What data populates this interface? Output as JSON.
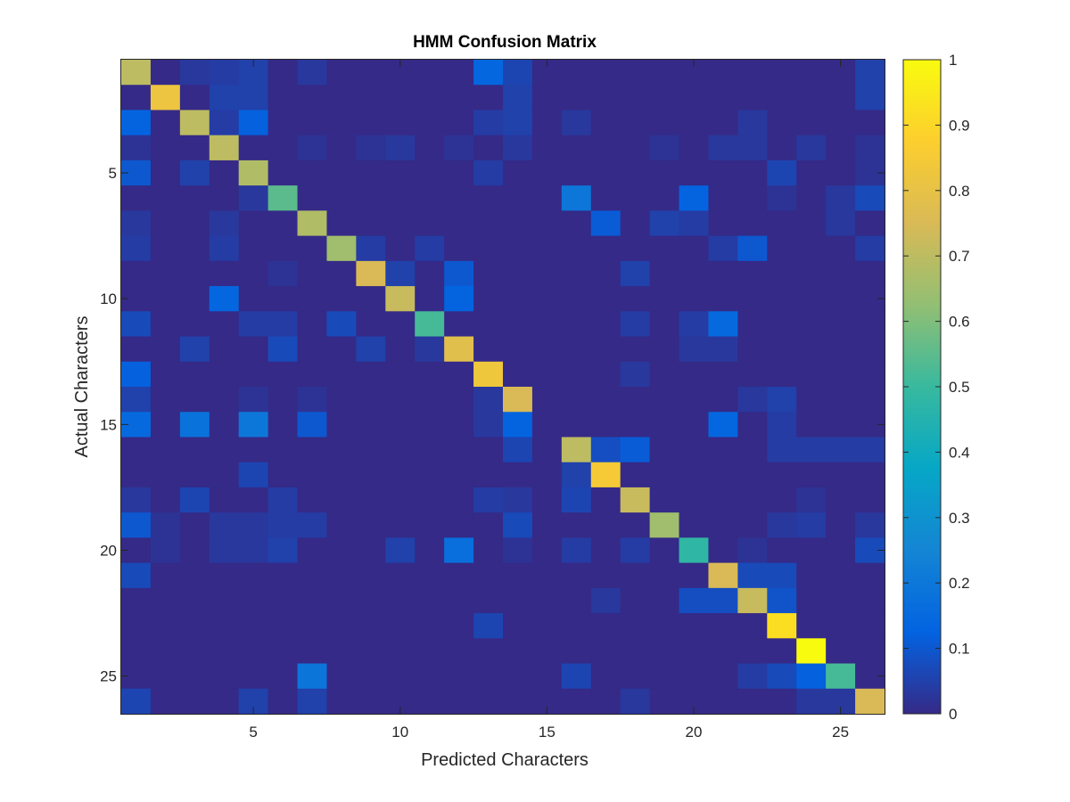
{
  "chart_data": {
    "type": "heatmap",
    "title": "HMM Confusion Matrix",
    "xlabel": "Predicted Characters",
    "ylabel": "Actual Characters",
    "rows": 26,
    "cols": 26,
    "xticks": [
      5,
      10,
      15,
      20,
      25
    ],
    "yticks": [
      5,
      10,
      15,
      20,
      25
    ],
    "clim": [
      0,
      1
    ],
    "colorbar_ticks": [
      0,
      0.1,
      0.2,
      0.3,
      0.4,
      0.5,
      0.6,
      0.7,
      0.8,
      0.9,
      1
    ],
    "colormap": "parula",
    "colormap_stops": [
      "#352a87",
      "#0363e1",
      "#1485d4",
      "#06a7c6",
      "#38b99e",
      "#92bf73",
      "#d9ba56",
      "#fcce2e",
      "#f9fb0e"
    ],
    "grid": false,
    "matrix": [
      [
        0.7,
        0.0,
        0.03,
        0.04,
        0.05,
        0.0,
        0.03,
        0.0,
        0.0,
        0.0,
        0.0,
        0.0,
        0.14,
        0.06,
        0.0,
        0.0,
        0.0,
        0.0,
        0.0,
        0.0,
        0.0,
        0.0,
        0.0,
        0.0,
        0.0,
        0.05
      ],
      [
        0.0,
        0.82,
        0.0,
        0.05,
        0.05,
        0.0,
        0.0,
        0.0,
        0.0,
        0.0,
        0.0,
        0.0,
        0.0,
        0.05,
        0.0,
        0.0,
        0.0,
        0.0,
        0.0,
        0.0,
        0.0,
        0.0,
        0.0,
        0.0,
        0.0,
        0.05
      ],
      [
        0.13,
        0.0,
        0.7,
        0.04,
        0.12,
        0.0,
        0.0,
        0.0,
        0.0,
        0.0,
        0.0,
        0.0,
        0.04,
        0.05,
        0.0,
        0.03,
        0.0,
        0.0,
        0.0,
        0.0,
        0.0,
        0.03,
        0.0,
        0.0,
        0.0,
        0.0
      ],
      [
        0.02,
        0.0,
        0.0,
        0.7,
        0.0,
        0.0,
        0.02,
        0.0,
        0.02,
        0.03,
        0.0,
        0.02,
        0.0,
        0.03,
        0.0,
        0.0,
        0.0,
        0.0,
        0.02,
        0.0,
        0.03,
        0.03,
        0.0,
        0.03,
        0.0,
        0.02
      ],
      [
        0.1,
        0.0,
        0.05,
        0.0,
        0.68,
        0.0,
        0.0,
        0.0,
        0.0,
        0.0,
        0.0,
        0.0,
        0.04,
        0.0,
        0.0,
        0.0,
        0.0,
        0.0,
        0.0,
        0.0,
        0.0,
        0.0,
        0.06,
        0.0,
        0.0,
        0.02
      ],
      [
        0.0,
        0.0,
        0.0,
        0.0,
        0.03,
        0.55,
        0.0,
        0.0,
        0.0,
        0.0,
        0.0,
        0.0,
        0.0,
        0.0,
        0.0,
        0.2,
        0.0,
        0.0,
        0.0,
        0.13,
        0.0,
        0.0,
        0.02,
        0.0,
        0.03,
        0.07
      ],
      [
        0.03,
        0.0,
        0.0,
        0.03,
        0.0,
        0.0,
        0.68,
        0.0,
        0.0,
        0.0,
        0.0,
        0.0,
        0.0,
        0.0,
        0.0,
        0.0,
        0.11,
        0.0,
        0.05,
        0.04,
        0.0,
        0.0,
        0.0,
        0.0,
        0.03,
        0.0
      ],
      [
        0.04,
        0.0,
        0.0,
        0.04,
        0.0,
        0.0,
        0.0,
        0.65,
        0.04,
        0.0,
        0.04,
        0.0,
        0.0,
        0.0,
        0.0,
        0.0,
        0.0,
        0.0,
        0.0,
        0.0,
        0.04,
        0.1,
        0.0,
        0.0,
        0.0,
        0.04
      ],
      [
        0.0,
        0.0,
        0.0,
        0.0,
        0.0,
        0.02,
        0.0,
        0.0,
        0.75,
        0.05,
        0.0,
        0.1,
        0.0,
        0.0,
        0.0,
        0.0,
        0.0,
        0.05,
        0.0,
        0.0,
        0.0,
        0.0,
        0.0,
        0.0,
        0.0,
        0.0
      ],
      [
        0.0,
        0.0,
        0.0,
        0.14,
        0.0,
        0.0,
        0.0,
        0.0,
        0.0,
        0.72,
        0.0,
        0.13,
        0.0,
        0.0,
        0.0,
        0.0,
        0.0,
        0.0,
        0.0,
        0.0,
        0.0,
        0.0,
        0.0,
        0.0,
        0.0,
        0.0
      ],
      [
        0.07,
        0.0,
        0.0,
        0.0,
        0.04,
        0.04,
        0.0,
        0.07,
        0.0,
        0.0,
        0.52,
        0.0,
        0.0,
        0.0,
        0.0,
        0.0,
        0.0,
        0.04,
        0.0,
        0.04,
        0.15,
        0.0,
        0.0,
        0.0,
        0.0,
        0.0
      ],
      [
        0.0,
        0.0,
        0.05,
        0.0,
        0.0,
        0.07,
        0.0,
        0.0,
        0.05,
        0.0,
        0.03,
        0.78,
        0.0,
        0.0,
        0.0,
        0.0,
        0.0,
        0.0,
        0.0,
        0.03,
        0.03,
        0.0,
        0.0,
        0.0,
        0.0,
        0.0
      ],
      [
        0.12,
        0.0,
        0.0,
        0.0,
        0.0,
        0.0,
        0.0,
        0.0,
        0.0,
        0.0,
        0.0,
        0.0,
        0.83,
        0.0,
        0.0,
        0.0,
        0.0,
        0.03,
        0.0,
        0.0,
        0.0,
        0.0,
        0.0,
        0.0,
        0.0,
        0.0
      ],
      [
        0.05,
        0.0,
        0.0,
        0.0,
        0.02,
        0.0,
        0.02,
        0.0,
        0.0,
        0.0,
        0.0,
        0.0,
        0.03,
        0.75,
        0.0,
        0.0,
        0.0,
        0.0,
        0.0,
        0.0,
        0.0,
        0.03,
        0.05,
        0.0,
        0.0,
        0.0
      ],
      [
        0.15,
        0.0,
        0.18,
        0.0,
        0.2,
        0.0,
        0.1,
        0.0,
        0.0,
        0.0,
        0.0,
        0.0,
        0.03,
        0.13,
        0.0,
        0.0,
        0.0,
        0.0,
        0.0,
        0.0,
        0.14,
        0.0,
        0.04,
        0.0,
        0.0,
        0.0
      ],
      [
        0.0,
        0.0,
        0.0,
        0.0,
        0.0,
        0.0,
        0.0,
        0.0,
        0.0,
        0.0,
        0.0,
        0.0,
        0.0,
        0.06,
        0.0,
        0.7,
        0.08,
        0.11,
        0.0,
        0.0,
        0.0,
        0.0,
        0.04,
        0.04,
        0.04,
        0.04
      ],
      [
        0.0,
        0.0,
        0.0,
        0.0,
        0.06,
        0.0,
        0.0,
        0.0,
        0.0,
        0.0,
        0.0,
        0.0,
        0.0,
        0.0,
        0.0,
        0.05,
        0.85,
        0.0,
        0.0,
        0.0,
        0.0,
        0.0,
        0.0,
        0.0,
        0.0,
        0.0
      ],
      [
        0.03,
        0.0,
        0.06,
        0.0,
        0.0,
        0.04,
        0.0,
        0.0,
        0.0,
        0.0,
        0.0,
        0.0,
        0.04,
        0.03,
        0.0,
        0.06,
        0.0,
        0.72,
        0.0,
        0.0,
        0.0,
        0.0,
        0.0,
        0.02,
        0.0,
        0.0
      ],
      [
        0.1,
        0.02,
        0.0,
        0.03,
        0.03,
        0.04,
        0.04,
        0.0,
        0.0,
        0.0,
        0.0,
        0.0,
        0.0,
        0.07,
        0.0,
        0.0,
        0.0,
        0.0,
        0.65,
        0.0,
        0.0,
        0.0,
        0.03,
        0.04,
        0.0,
        0.03
      ],
      [
        0.0,
        0.02,
        0.0,
        0.03,
        0.03,
        0.05,
        0.0,
        0.0,
        0.0,
        0.05,
        0.0,
        0.17,
        0.0,
        0.02,
        0.0,
        0.04,
        0.0,
        0.04,
        0.0,
        0.48,
        0.0,
        0.02,
        0.0,
        0.0,
        0.0,
        0.07
      ],
      [
        0.07,
        0.0,
        0.0,
        0.0,
        0.0,
        0.0,
        0.0,
        0.0,
        0.0,
        0.0,
        0.0,
        0.0,
        0.0,
        0.0,
        0.0,
        0.0,
        0.0,
        0.0,
        0.0,
        0.0,
        0.75,
        0.07,
        0.07,
        0.0,
        0.0,
        0.0
      ],
      [
        0.0,
        0.0,
        0.0,
        0.0,
        0.0,
        0.0,
        0.0,
        0.0,
        0.0,
        0.0,
        0.0,
        0.0,
        0.0,
        0.0,
        0.0,
        0.0,
        0.03,
        0.0,
        0.0,
        0.08,
        0.08,
        0.72,
        0.09,
        0.0,
        0.0,
        0.0
      ],
      [
        0.0,
        0.0,
        0.0,
        0.0,
        0.0,
        0.0,
        0.0,
        0.0,
        0.0,
        0.0,
        0.0,
        0.0,
        0.06,
        0.0,
        0.0,
        0.0,
        0.0,
        0.0,
        0.0,
        0.0,
        0.0,
        0.0,
        0.92,
        0.0,
        0.0,
        0.0
      ],
      [
        0.0,
        0.0,
        0.0,
        0.0,
        0.0,
        0.0,
        0.0,
        0.0,
        0.0,
        0.0,
        0.0,
        0.0,
        0.0,
        0.0,
        0.0,
        0.0,
        0.0,
        0.0,
        0.0,
        0.0,
        0.0,
        0.0,
        0.0,
        1.0,
        0.0,
        0.0
      ],
      [
        0.0,
        0.0,
        0.0,
        0.0,
        0.0,
        0.0,
        0.19,
        0.0,
        0.0,
        0.0,
        0.0,
        0.0,
        0.0,
        0.0,
        0.0,
        0.06,
        0.0,
        0.0,
        0.0,
        0.0,
        0.0,
        0.04,
        0.07,
        0.12,
        0.52,
        0.0
      ],
      [
        0.06,
        0.0,
        0.0,
        0.0,
        0.05,
        0.0,
        0.05,
        0.0,
        0.0,
        0.0,
        0.0,
        0.0,
        0.0,
        0.0,
        0.0,
        0.0,
        0.0,
        0.03,
        0.0,
        0.0,
        0.0,
        0.0,
        0.0,
        0.03,
        0.03,
        0.75
      ]
    ]
  }
}
